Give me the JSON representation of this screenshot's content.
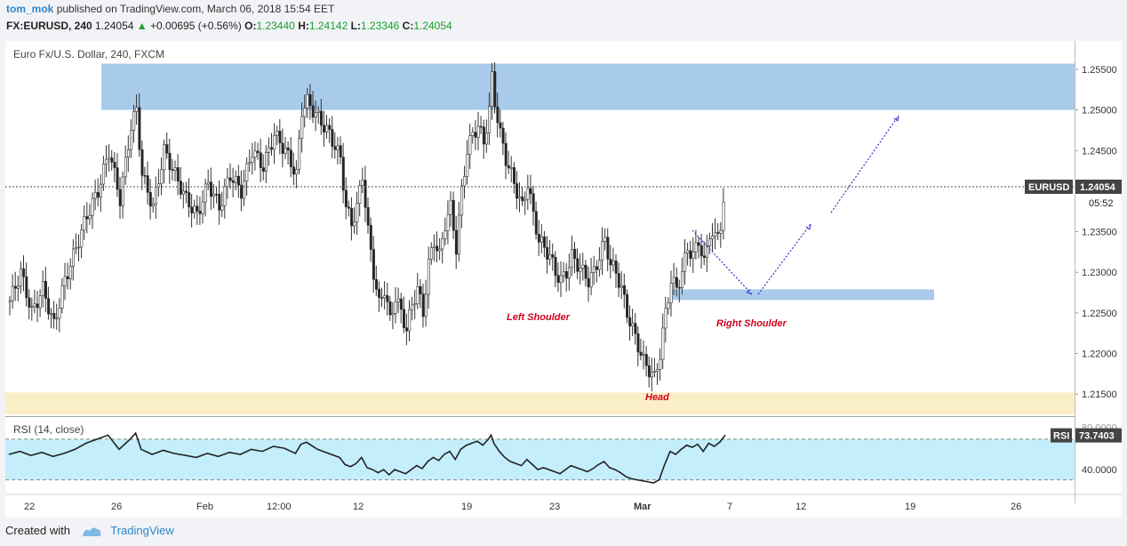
{
  "header": {
    "author": "tom_mok",
    "published": "published on TradingView.com, March 06, 2018 15:54 EET",
    "symbol_line": "FX:EURUSD, 240",
    "last": "1.24054",
    "change": "+0.00695 (+0.56%)",
    "o_label": "O:",
    "o": "1.23440",
    "h_label": "H:",
    "h": "1.24142",
    "l_label": "L:",
    "l": "1.23346",
    "c_label": "C:",
    "c": "1.24054"
  },
  "footer": {
    "created_with": "Created with",
    "brand": "TradingView"
  },
  "colors": {
    "up": "#555555",
    "down": "#222222",
    "zone_blue": "#a8cbeb",
    "zone_yellow": "#fbefc8",
    "rsi_bg": "#c4eefc",
    "label_red": "#d0021b",
    "arrow": "#3333cc",
    "tag_bg": "#444444"
  },
  "chart_data": [
    {
      "type": "candlestick",
      "title": "Euro Fx/U.S. Dollar, 240, FXCM",
      "price_tag_label": "EURUSD",
      "last_price": "1.24054",
      "countdown": "05:52",
      "y_ticks": [
        "1.21500",
        "1.22000",
        "1.22500",
        "1.23000",
        "1.23500",
        "1.24500",
        "1.25000",
        "1.25500"
      ],
      "ylim": [
        1.2125,
        1.2585
      ],
      "x_ticks": [
        "22",
        "26",
        "Feb",
        "12:00",
        "12",
        "19",
        "23",
        "Mar",
        "7",
        "12",
        "19",
        "26"
      ],
      "zones": [
        {
          "name": "supply",
          "from": 1.25,
          "to": 1.2557
        },
        {
          "name": "neckline-support",
          "from": 1.2266,
          "to": 1.2279
        },
        {
          "name": "demand",
          "from": 1.211,
          "to": 1.2152
        }
      ],
      "annotations": [
        "Left Shoulder",
        "Head",
        "Right Shoulder"
      ],
      "close_path": [
        [
          0,
          1.2265
        ],
        [
          4,
          1.23
        ],
        [
          8,
          1.225
        ],
        [
          12,
          1.228
        ],
        [
          16,
          1.2235
        ],
        [
          20,
          1.229
        ],
        [
          24,
          1.233
        ],
        [
          28,
          1.237
        ],
        [
          32,
          1.24
        ],
        [
          36,
          1.245
        ],
        [
          40,
          1.239
        ],
        [
          44,
          1.248
        ],
        [
          46,
          1.25
        ],
        [
          48,
          1.242
        ],
        [
          52,
          1.238
        ],
        [
          56,
          1.245
        ],
        [
          60,
          1.242
        ],
        [
          64,
          1.239
        ],
        [
          68,
          1.237
        ],
        [
          72,
          1.241
        ],
        [
          76,
          1.238
        ],
        [
          80,
          1.242
        ],
        [
          84,
          1.24
        ],
        [
          88,
          1.245
        ],
        [
          92,
          1.243
        ],
        [
          96,
          1.247
        ],
        [
          100,
          1.245
        ],
        [
          104,
          1.242
        ],
        [
          106,
          1.25
        ],
        [
          108,
          1.251
        ],
        [
          112,
          1.249
        ],
        [
          116,
          1.247
        ],
        [
          120,
          1.244
        ],
        [
          122,
          1.238
        ],
        [
          124,
          1.236
        ],
        [
          126,
          1.238
        ],
        [
          128,
          1.242
        ],
        [
          130,
          1.235
        ],
        [
          132,
          1.23
        ],
        [
          134,
          1.226
        ],
        [
          136,
          1.228
        ],
        [
          138,
          1.224
        ],
        [
          140,
          1.227
        ],
        [
          142,
          1.225
        ],
        [
          144,
          1.223
        ],
        [
          146,
          1.226
        ],
        [
          148,
          1.228
        ],
        [
          150,
          1.225
        ],
        [
          152,
          1.231
        ],
        [
          154,
          1.234
        ],
        [
          156,
          1.232
        ],
        [
          158,
          1.236
        ],
        [
          160,
          1.238
        ],
        [
          162,
          1.233
        ],
        [
          164,
          1.24
        ],
        [
          166,
          1.245
        ],
        [
          168,
          1.247
        ],
        [
          170,
          1.248
        ],
        [
          172,
          1.246
        ],
        [
          174,
          1.25
        ],
        [
          175,
          1.254
        ],
        [
          176,
          1.251
        ],
        [
          178,
          1.247
        ],
        [
          180,
          1.244
        ],
        [
          182,
          1.242
        ],
        [
          184,
          1.24
        ],
        [
          186,
          1.238
        ],
        [
          188,
          1.241
        ],
        [
          190,
          1.237
        ],
        [
          192,
          1.234
        ],
        [
          194,
          1.233
        ],
        [
          196,
          1.232
        ],
        [
          198,
          1.23
        ],
        [
          200,
          1.229
        ],
        [
          202,
          1.23
        ],
        [
          204,
          1.232
        ],
        [
          206,
          1.231
        ],
        [
          208,
          1.23
        ],
        [
          210,
          1.229
        ],
        [
          212,
          1.23
        ],
        [
          214,
          1.232
        ],
        [
          216,
          1.234
        ],
        [
          218,
          1.231
        ],
        [
          220,
          1.23
        ],
        [
          222,
          1.228
        ],
        [
          224,
          1.225
        ],
        [
          226,
          1.223
        ],
        [
          228,
          1.221
        ],
        [
          230,
          1.219
        ],
        [
          232,
          1.218
        ],
        [
          234,
          1.217
        ],
        [
          236,
          1.22
        ],
        [
          238,
          1.225
        ],
        [
          240,
          1.229
        ],
        [
          242,
          1.228
        ],
        [
          244,
          1.23
        ],
        [
          246,
          1.233
        ],
        [
          248,
          1.232
        ],
        [
          250,
          1.234
        ],
        [
          252,
          1.231
        ],
        [
          254,
          1.235
        ],
        [
          256,
          1.234
        ],
        [
          258,
          1.236
        ],
        [
          260,
          1.2405
        ]
      ],
      "rsi": {
        "label": "RSI (14, close)",
        "value": "73.7403",
        "tick": "40.0000",
        "overlap_tick": "80.0000",
        "bands": [
          30,
          70
        ],
        "ylim": [
          20,
          90
        ],
        "path": [
          [
            0,
            55
          ],
          [
            4,
            58
          ],
          [
            8,
            54
          ],
          [
            12,
            57
          ],
          [
            16,
            53
          ],
          [
            20,
            56
          ],
          [
            24,
            60
          ],
          [
            28,
            66
          ],
          [
            32,
            70
          ],
          [
            36,
            74
          ],
          [
            40,
            60
          ],
          [
            44,
            70
          ],
          [
            46,
            76
          ],
          [
            48,
            60
          ],
          [
            52,
            55
          ],
          [
            56,
            59
          ],
          [
            60,
            56
          ],
          [
            64,
            54
          ],
          [
            68,
            52
          ],
          [
            72,
            56
          ],
          [
            76,
            53
          ],
          [
            80,
            57
          ],
          [
            84,
            55
          ],
          [
            88,
            60
          ],
          [
            92,
            58
          ],
          [
            96,
            63
          ],
          [
            100,
            61
          ],
          [
            104,
            56
          ],
          [
            106,
            65
          ],
          [
            108,
            67
          ],
          [
            112,
            60
          ],
          [
            116,
            56
          ],
          [
            120,
            52
          ],
          [
            122,
            45
          ],
          [
            124,
            43
          ],
          [
            126,
            46
          ],
          [
            128,
            52
          ],
          [
            130,
            42
          ],
          [
            132,
            40
          ],
          [
            134,
            37
          ],
          [
            136,
            40
          ],
          [
            138,
            35
          ],
          [
            140,
            40
          ],
          [
            142,
            38
          ],
          [
            144,
            36
          ],
          [
            146,
            40
          ],
          [
            148,
            44
          ],
          [
            150,
            41
          ],
          [
            152,
            48
          ],
          [
            154,
            52
          ],
          [
            156,
            49
          ],
          [
            158,
            55
          ],
          [
            160,
            58
          ],
          [
            162,
            50
          ],
          [
            164,
            60
          ],
          [
            166,
            64
          ],
          [
            168,
            66
          ],
          [
            170,
            68
          ],
          [
            172,
            64
          ],
          [
            174,
            70
          ],
          [
            175,
            74
          ],
          [
            176,
            66
          ],
          [
            178,
            58
          ],
          [
            180,
            52
          ],
          [
            182,
            48
          ],
          [
            184,
            46
          ],
          [
            186,
            44
          ],
          [
            188,
            50
          ],
          [
            190,
            45
          ],
          [
            192,
            40
          ],
          [
            194,
            42
          ],
          [
            196,
            40
          ],
          [
            198,
            38
          ],
          [
            200,
            36
          ],
          [
            202,
            40
          ],
          [
            204,
            44
          ],
          [
            206,
            42
          ],
          [
            208,
            40
          ],
          [
            210,
            38
          ],
          [
            212,
            41
          ],
          [
            214,
            45
          ],
          [
            216,
            48
          ],
          [
            218,
            42
          ],
          [
            220,
            40
          ],
          [
            222,
            37
          ],
          [
            224,
            33
          ],
          [
            226,
            31
          ],
          [
            228,
            30
          ],
          [
            230,
            29
          ],
          [
            232,
            28
          ],
          [
            234,
            27
          ],
          [
            236,
            30
          ],
          [
            238,
            45
          ],
          [
            240,
            58
          ],
          [
            242,
            55
          ],
          [
            244,
            60
          ],
          [
            246,
            64
          ],
          [
            248,
            62
          ],
          [
            250,
            65
          ],
          [
            252,
            58
          ],
          [
            254,
            66
          ],
          [
            256,
            63
          ],
          [
            258,
            67
          ],
          [
            260,
            74
          ]
        ]
      }
    }
  ]
}
